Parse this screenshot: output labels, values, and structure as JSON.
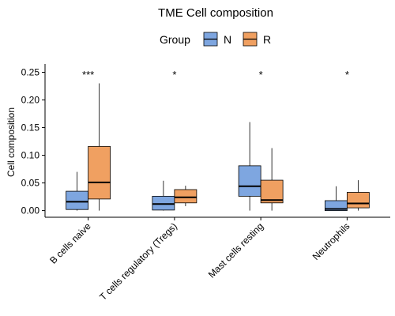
{
  "chart_data": {
    "type": "boxplot",
    "title": "TME Cell composition",
    "xlabel": "",
    "ylabel": "Cell composition",
    "ylim": [
      -0.012,
      0.265
    ],
    "yticks": [
      "0.00",
      "0.05",
      "0.10",
      "0.15",
      "0.20",
      "0.25"
    ],
    "ytick_values": [
      0,
      0.05,
      0.1,
      0.15,
      0.2,
      0.25
    ],
    "grid": false,
    "legend": {
      "title": "Group",
      "position": "top"
    },
    "categories": [
      "B cells naive",
      "T cells regulatory (Tregs)",
      "Mast cells resting",
      "Neutrophils"
    ],
    "significance": [
      "***",
      "*",
      "*",
      "*"
    ],
    "series": [
      {
        "name": "N",
        "color": "#7EA6E0",
        "boxes": [
          {
            "min": 0.0,
            "q1": 0.002,
            "median": 0.016,
            "q3": 0.035,
            "max": 0.07
          },
          {
            "min": 0.0,
            "q1": 0.001,
            "median": 0.012,
            "q3": 0.026,
            "max": 0.054
          },
          {
            "min": 0.0,
            "q1": 0.026,
            "median": 0.044,
            "q3": 0.081,
            "max": 0.16
          },
          {
            "min": 0.0,
            "q1": 0.0,
            "median": 0.003,
            "q3": 0.018,
            "max": 0.044
          }
        ]
      },
      {
        "name": "R",
        "color": "#F0A061",
        "boxes": [
          {
            "min": 0.0,
            "q1": 0.021,
            "median": 0.051,
            "q3": 0.116,
            "max": 0.23
          },
          {
            "min": 0.008,
            "q1": 0.014,
            "median": 0.024,
            "q3": 0.038,
            "max": 0.045
          },
          {
            "min": 0.0,
            "q1": 0.014,
            "median": 0.019,
            "q3": 0.055,
            "max": 0.113
          },
          {
            "min": 0.0,
            "q1": 0.005,
            "median": 0.013,
            "q3": 0.033,
            "max": 0.055
          }
        ]
      }
    ]
  }
}
